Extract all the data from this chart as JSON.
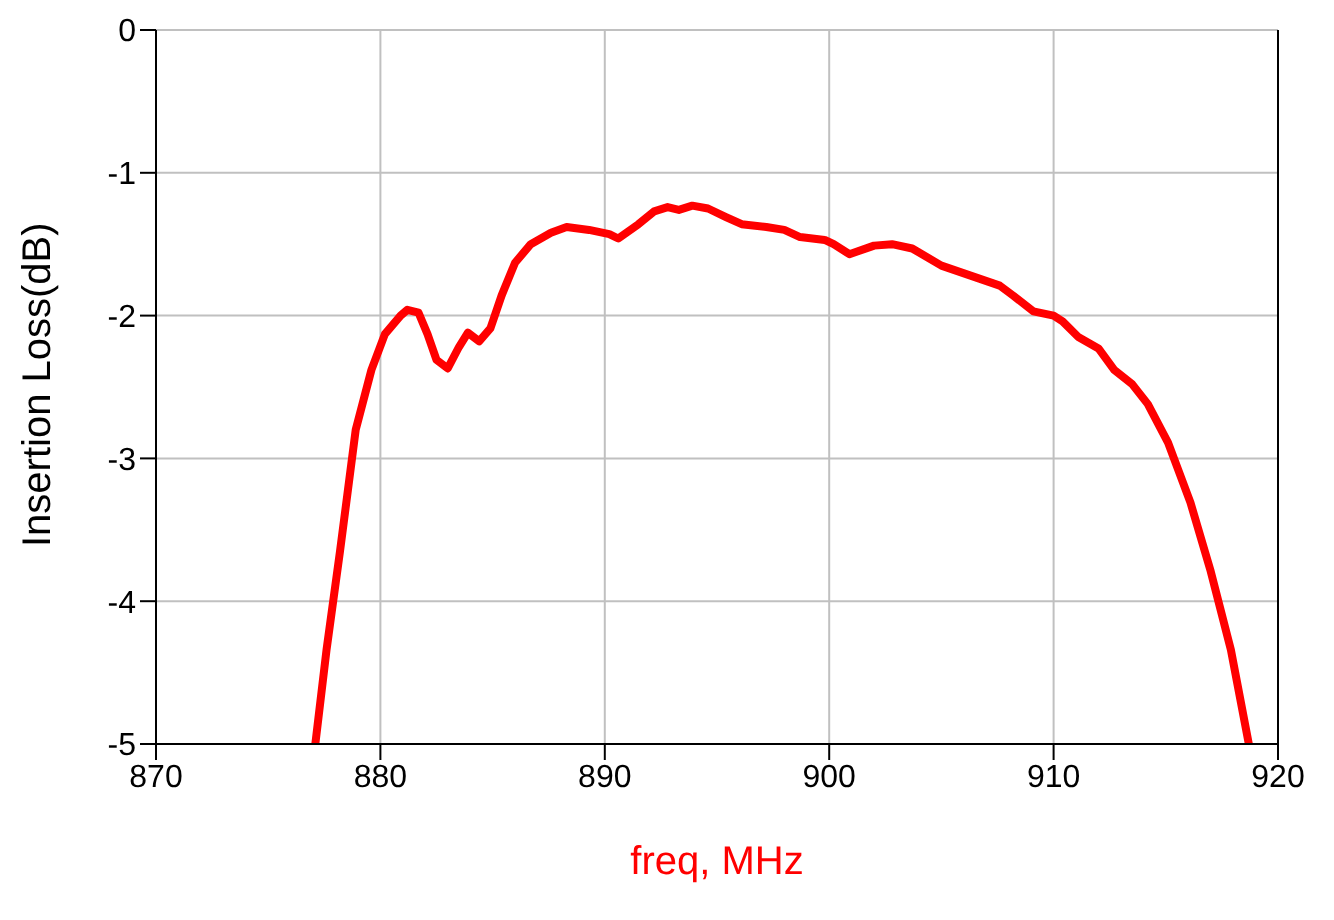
{
  "chart_data": {
    "type": "line",
    "xlabel": "freq, MHz",
    "ylabel": "Insertion Loss(dB)",
    "xlim": [
      870,
      920
    ],
    "xticks": [
      870,
      880,
      890,
      900,
      910,
      920
    ],
    "ylim": [
      -5,
      0
    ],
    "yticks": [
      -5,
      -4,
      -3,
      -2,
      -1,
      0
    ],
    "grid": true,
    "legend": false,
    "marker": "none",
    "line_style": "solid",
    "x": [
      877.1,
      877.6,
      878.2,
      878.9,
      879.6,
      880.2,
      880.9,
      881.2,
      881.7,
      882.1,
      882.5,
      883.0,
      883.5,
      883.9,
      884.4,
      884.9,
      885.4,
      886.0,
      886.7,
      887.6,
      888.3,
      889.3,
      890.2,
      890.6,
      891.5,
      892.2,
      892.8,
      893.3,
      893.9,
      894.6,
      895.4,
      896.1,
      897.2,
      898.0,
      898.7,
      899.8,
      900.2,
      900.9,
      902.0,
      902.8,
      903.7,
      905.0,
      906.3,
      907.6,
      908.2,
      909.1,
      910.0,
      910.4,
      911.1,
      912.0,
      912.7,
      913.5,
      914.2,
      915.1,
      916.1,
      917.0,
      917.9,
      918.7
    ],
    "series": [
      {
        "color": "#ff0000",
        "values": [
          -5,
          -4.34,
          -3.65,
          -2.8,
          -2.38,
          -2.13,
          -2.0,
          -1.96,
          -1.98,
          -2.13,
          -2.31,
          -2.37,
          -2.22,
          -2.12,
          -2.18,
          -2.09,
          -1.86,
          -1.63,
          -1.5,
          -1.42,
          -1.38,
          -1.4,
          -1.43,
          -1.46,
          -1.36,
          -1.27,
          -1.24,
          -1.26,
          -1.23,
          -1.25,
          -1.31,
          -1.36,
          -1.38,
          -1.4,
          -1.45,
          -1.47,
          -1.5,
          -1.57,
          -1.51,
          -1.5,
          -1.53,
          -1.65,
          -1.72,
          -1.79,
          -1.86,
          -1.97,
          -2.0,
          -2.04,
          -2.15,
          -2.23,
          -2.38,
          -2.48,
          -2.62,
          -2.89,
          -3.31,
          -3.79,
          -4.34,
          -5
        ]
      }
    ]
  }
}
